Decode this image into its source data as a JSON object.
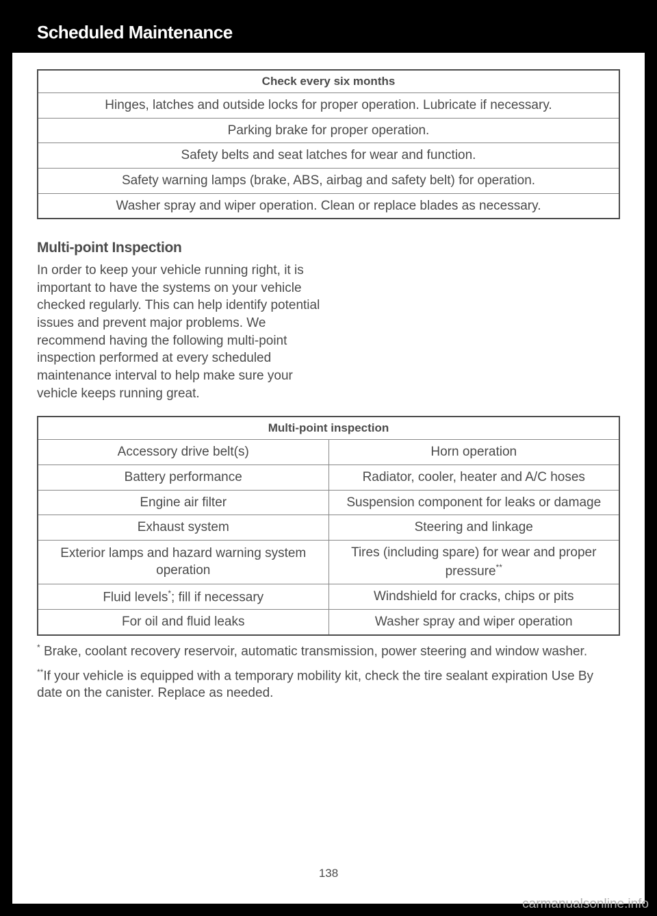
{
  "header": {
    "title": "Scheduled Maintenance"
  },
  "table1": {
    "header": "Check every six months",
    "rows": [
      "Hinges, latches and outside locks for proper operation. Lubricate if necessary.",
      "Parking brake for proper operation.",
      "Safety belts and seat latches for wear and function.",
      "Safety warning lamps (brake, ABS, airbag and safety belt) for operation.",
      "Washer spray and wiper operation. Clean or replace blades as necessary."
    ]
  },
  "section": {
    "heading": "Multi-point Inspection",
    "body": "In order to keep your vehicle running right, it is important to have the systems on your vehicle checked regularly. This can help identify potential issues and prevent major problems. We recommend having the following multi-point inspection performed at every scheduled maintenance interval to help make sure your vehicle keeps running great."
  },
  "table2": {
    "header": "Multi-point inspection",
    "rows": [
      {
        "left": "Accessory drive belt(s)",
        "right": "Horn operation"
      },
      {
        "left": "Battery performance",
        "right": "Radiator, cooler, heater and A/C hoses"
      },
      {
        "left": "Engine air filter",
        "right": "Suspension component for leaks or damage"
      },
      {
        "left": "Exhaust system",
        "right": "Steering and linkage"
      },
      {
        "left": "Exterior lamps and hazard warning system operation",
        "right": "Tires (including spare) for wear and proper pressure",
        "right_sup": "**"
      },
      {
        "left": "Fluid levels",
        "left_sup": "*",
        "left_suffix": "; fill if necessary",
        "right": "Windshield for cracks, chips or pits"
      },
      {
        "left": "For oil and fluid leaks",
        "right": "Washer spray and wiper operation"
      }
    ]
  },
  "footnotes": {
    "note1_sup": "*",
    "note1": " Brake, coolant recovery reservoir, automatic transmission, power steering and window washer.",
    "note2_sup": "**",
    "note2": "If your vehicle is equipped with a temporary mobility kit, check the tire sealant expiration Use By date on the canister. Replace as needed."
  },
  "page_number": "138",
  "watermark": "carmanualsonline.info"
}
